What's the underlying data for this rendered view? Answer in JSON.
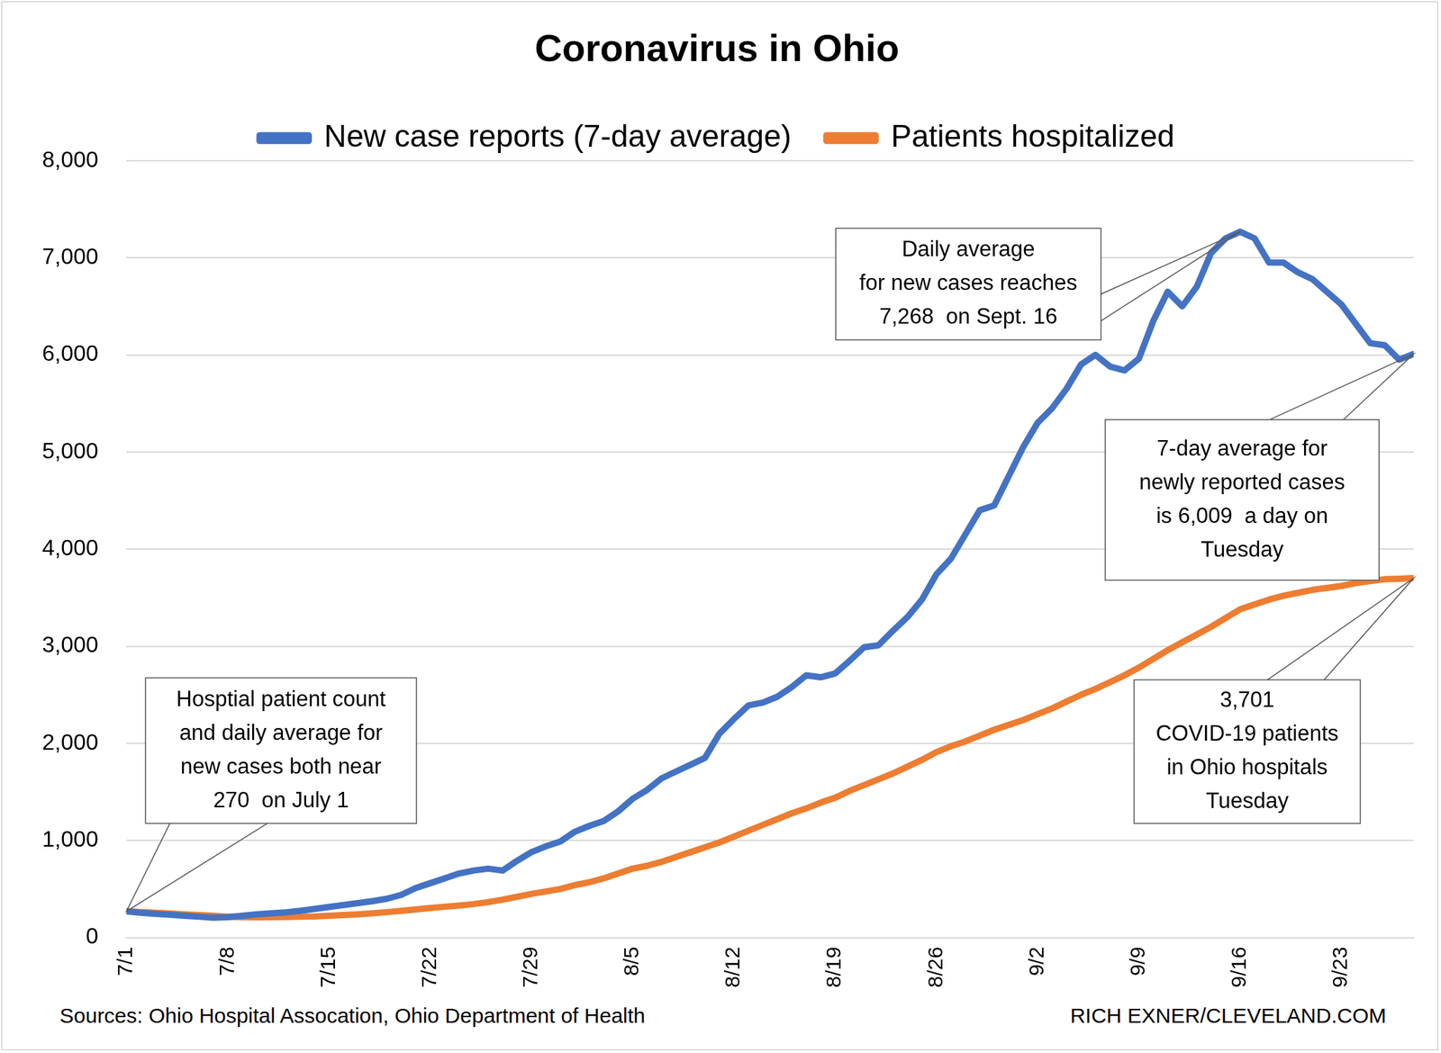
{
  "chart_data": {
    "type": "line",
    "title": "Coronavirus in Ohio",
    "categories": [
      "7/1",
      null,
      null,
      null,
      null,
      null,
      null,
      "7/8",
      null,
      null,
      null,
      null,
      null,
      null,
      "7/15",
      null,
      null,
      null,
      null,
      null,
      null,
      "7/22",
      null,
      null,
      null,
      null,
      null,
      null,
      "7/29",
      null,
      null,
      null,
      null,
      null,
      null,
      "8/5",
      null,
      null,
      null,
      null,
      null,
      null,
      "8/12",
      null,
      null,
      null,
      null,
      null,
      null,
      "8/19",
      null,
      null,
      null,
      null,
      null,
      null,
      "8/26",
      null,
      null,
      null,
      null,
      null,
      null,
      "9/2",
      null,
      null,
      null,
      null,
      null,
      null,
      "9/9",
      null,
      null,
      null,
      null,
      null,
      null,
      "9/16",
      null,
      null,
      null,
      null,
      null,
      null,
      "9/23",
      null,
      null,
      null,
      null,
      null
    ],
    "series": [
      {
        "name": "New case reports (7-day average)",
        "color": "#4472c4",
        "values": [
          270,
          255,
          245,
          235,
          225,
          215,
          205,
          210,
          225,
          240,
          250,
          260,
          275,
          295,
          315,
          335,
          355,
          375,
          400,
          440,
          510,
          560,
          610,
          660,
          690,
          710,
          690,
          790,
          880,
          940,
          990,
          1090,
          1150,
          1200,
          1300,
          1430,
          1520,
          1640,
          1710,
          1780,
          1850,
          2100,
          2250,
          2390,
          2420,
          2480,
          2580,
          2700,
          2680,
          2720,
          2850,
          2990,
          3010,
          3160,
          3300,
          3480,
          3740,
          3900,
          4150,
          4400,
          4450,
          4750,
          5050,
          5300,
          5450,
          5650,
          5900,
          6000,
          5880,
          5840,
          5960,
          6350,
          6650,
          6500,
          6700,
          7050,
          7200,
          7268,
          7200,
          6950,
          6950,
          6850,
          6780,
          6650,
          6520,
          6320,
          6120,
          6100,
          5950,
          6009
        ]
      },
      {
        "name": "Patients hospitalized",
        "color": "#ed7d31",
        "values": [
          270,
          262,
          255,
          248,
          240,
          232,
          225,
          215,
          210,
          208,
          210,
          212,
          215,
          218,
          225,
          232,
          240,
          250,
          262,
          275,
          290,
          305,
          318,
          330,
          345,
          365,
          390,
          420,
          450,
          475,
          500,
          540,
          570,
          610,
          660,
          710,
          740,
          780,
          830,
          880,
          930,
          980,
          1040,
          1100,
          1160,
          1220,
          1280,
          1330,
          1390,
          1440,
          1510,
          1570,
          1630,
          1690,
          1760,
          1830,
          1910,
          1970,
          2020,
          2080,
          2140,
          2190,
          2240,
          2300,
          2360,
          2430,
          2500,
          2560,
          2630,
          2700,
          2780,
          2870,
          2960,
          3040,
          3120,
          3200,
          3290,
          3380,
          3430,
          3480,
          3520,
          3550,
          3580,
          3600,
          3620,
          3650,
          3670,
          3690,
          3695,
          3701
        ]
      }
    ],
    "ylim": [
      0,
      8000
    ],
    "yticks": [
      0,
      {
        "value": 1000,
        "label": "1,000"
      },
      {
        "value": 2000,
        "label": "2,000"
      },
      {
        "value": 3000,
        "label": "3,000"
      },
      {
        "value": 4000,
        "label": "4,000"
      },
      {
        "value": 5000,
        "label": "5,000"
      },
      {
        "value": 6000,
        "label": "6,000"
      },
      {
        "value": 7000,
        "label": "7,000"
      },
      {
        "value": 8000,
        "label": "8,000"
      }
    ],
    "grid": true,
    "legend": "top",
    "annotations": [
      {
        "lines": [
          "Hosptial patient count",
          "and daily average for",
          "new cases both near",
          "270  on July 1"
        ]
      },
      {
        "lines": [
          "Daily average",
          "for new cases reaches",
          "7,268  on Sept. 16"
        ]
      },
      {
        "lines": [
          "7-day average for",
          "newly reported cases",
          "is 6,009  a day on",
          "Tuesday"
        ]
      },
      {
        "lines": [
          "3,701",
          "COVID-19 patients",
          "in Ohio hospitals",
          "Tuesday"
        ]
      }
    ],
    "source": "Sources: Ohio Hospital Assocation, Ohio Department of Health",
    "credit": "RICH EXNER/CLEVELAND.COM"
  }
}
